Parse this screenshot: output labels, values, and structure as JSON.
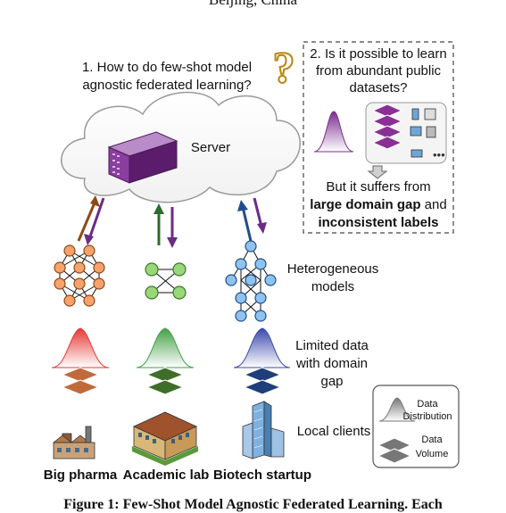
{
  "header": {
    "affiliation_line": "Beijing, China"
  },
  "question1": "1. How to do few-shot model agnostic federated learning?",
  "question2": "2. Is it possible to learn from abundant public datasets?",
  "question_mark": "?",
  "server_label": "Server",
  "suffers": {
    "line1": "But it suffers from",
    "line2_bold": "large domain gap",
    "line2_rest": " and",
    "line3_bold": "inconsistent labels"
  },
  "row_labels": {
    "models": "Heterogeneous models",
    "data": "Limited data with domain gap",
    "clients": "Local clients"
  },
  "clients": [
    {
      "name": "Big pharma",
      "color": "#f08a5d"
    },
    {
      "name": "Academic lab",
      "color": "#7dc35b"
    },
    {
      "name": "Biotech startup",
      "color": "#3f8fd6"
    }
  ],
  "legend": {
    "distribution": "Data Distribution",
    "volume": "Data Volume"
  },
  "caption": "Figure 1: Few-Shot Model Agnostic Federated Learning. Each",
  "colors": {
    "server_purple": "#7b2d8e",
    "accent_gold": "#b8860b"
  }
}
